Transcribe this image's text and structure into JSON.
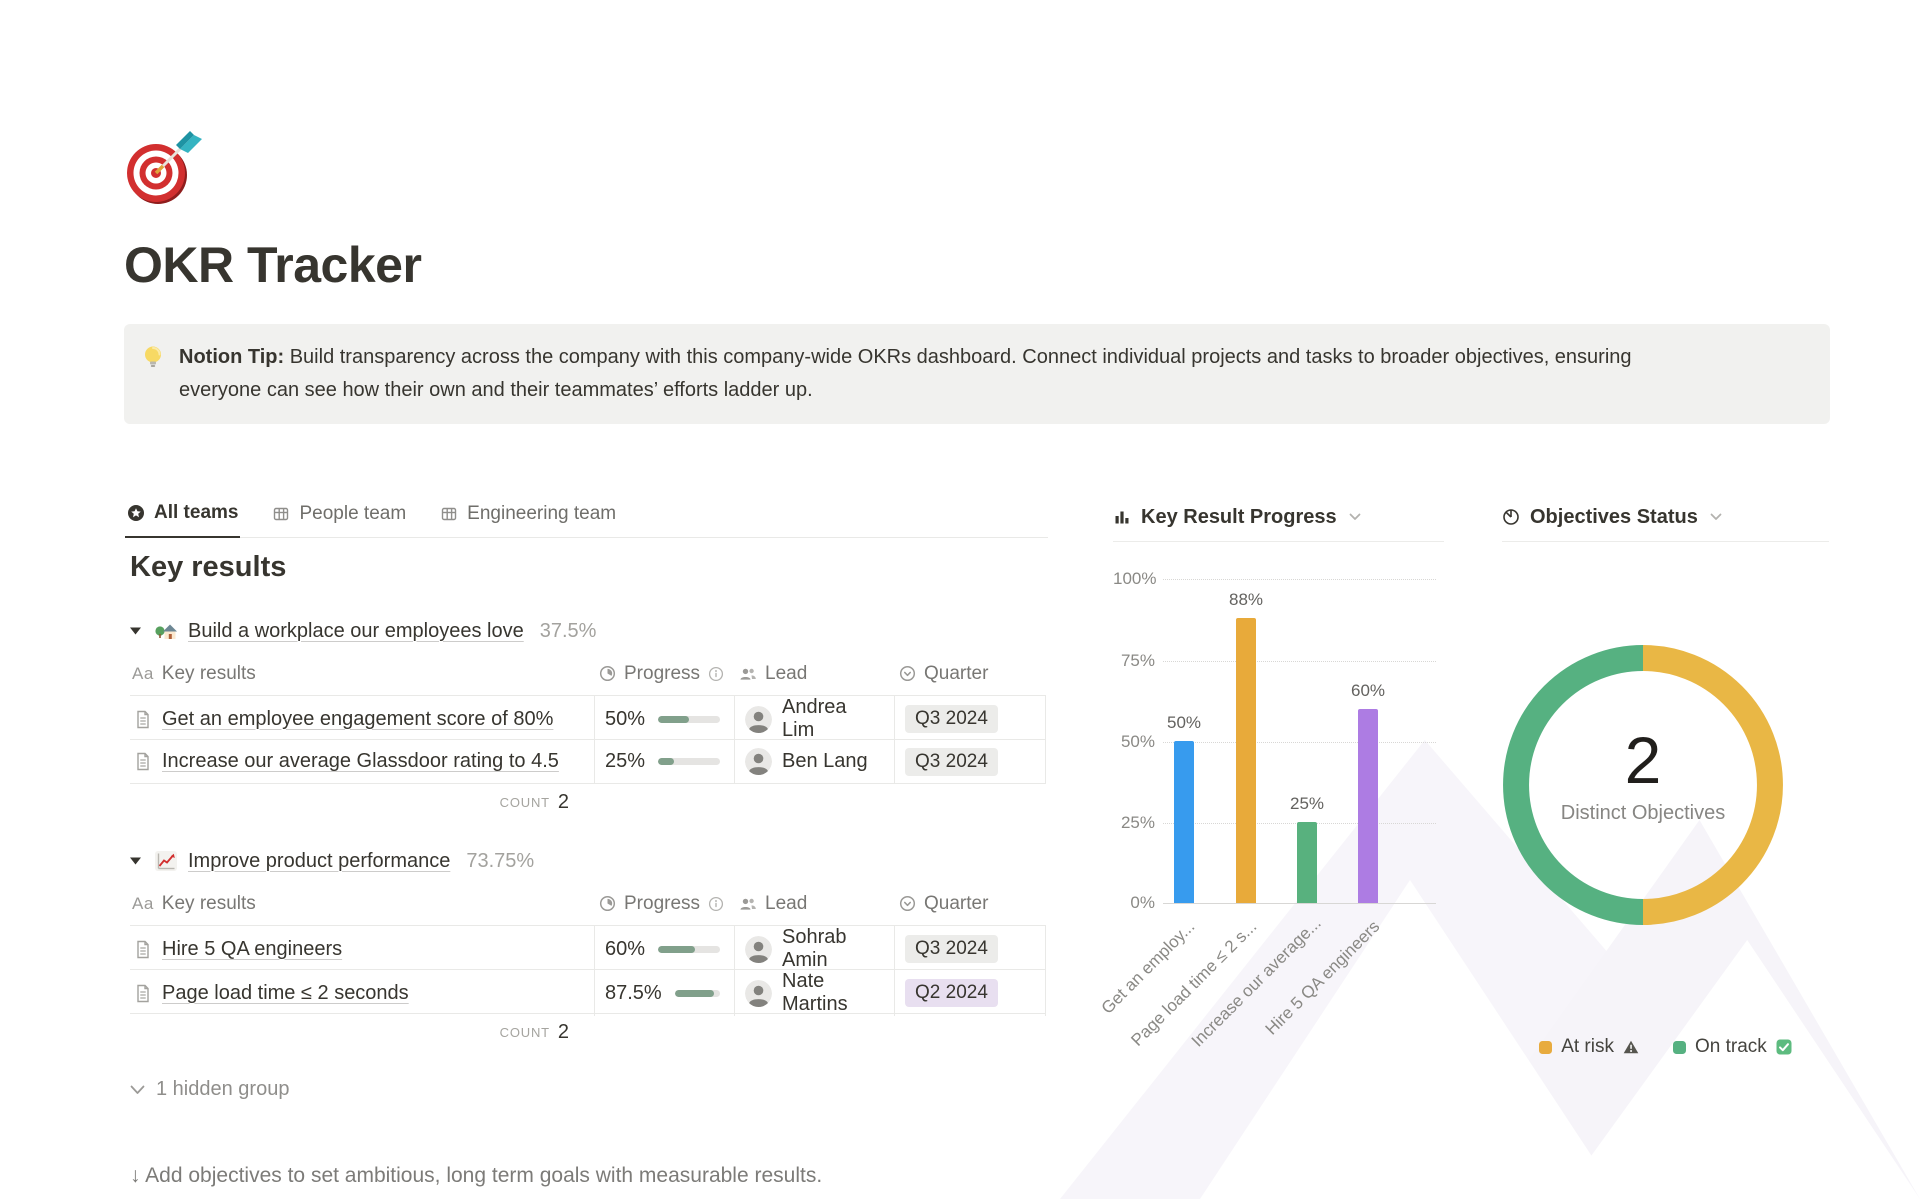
{
  "page": {
    "title": "OKR Tracker"
  },
  "callout": {
    "bold_prefix": "Notion Tip:",
    "line1": "Build transparency across the company with this company-wide OKRs dashboard. Connect individual projects and tasks to broader objectives, ensuring",
    "line2": "everyone can see how their own and their teammates’ efforts ladder up."
  },
  "tabs": [
    {
      "label": "All teams"
    },
    {
      "label": "People team"
    },
    {
      "label": "Engineering team"
    }
  ],
  "key_results": {
    "heading": "Key results",
    "columns": {
      "name_icon": "Aa",
      "name": "Key results",
      "progress": "Progress",
      "lead": "Lead",
      "quarter": "Quarter"
    },
    "count_label": "count",
    "groups": [
      {
        "title": "Build a workplace our employees love",
        "percent": "37.5%",
        "count": "2",
        "rows": [
          {
            "name": "Get an employee engagement score of 80%",
            "progress_label": "50%",
            "progress": 50,
            "lead": "Andrea Lim",
            "quarter": "Q3 2024"
          },
          {
            "name": "Increase our average Glassdoor rating to 4.5",
            "progress_label": "25%",
            "progress": 25,
            "lead": "Ben Lang",
            "quarter": "Q3 2024"
          }
        ]
      },
      {
        "title": "Improve product performance",
        "percent": "73.75%",
        "count": "2",
        "rows": [
          {
            "name": "Hire 5 QA engineers",
            "progress_label": "60%",
            "progress": 60,
            "lead": "Sohrab Amin",
            "quarter": "Q3 2024"
          },
          {
            "name": "Page load time ≤ 2 seconds",
            "progress_label": "87.5%",
            "progress": 87.5,
            "lead": "Nate Martins",
            "quarter": "Q2 2024"
          }
        ]
      }
    ],
    "hidden_group": "1 hidden group"
  },
  "footer": {
    "hint": "↓ Add objectives to set ambitious, long term goals with measurable results."
  },
  "chart_data": [
    {
      "type": "bar",
      "title": "Key Result Progress",
      "categories": [
        "Get an employee engagement score of 80%",
        "Page load time ≤ 2 seconds",
        "Increase our average Glassdoor rating to 4.5",
        "Hire 5 QA engineers"
      ],
      "tick_labels": [
        "Get an employ...",
        "Page load time ≤ 2 s...",
        "Increase our average...",
        "Hire 5 QA engineers"
      ],
      "values": [
        50,
        88,
        25,
        60
      ],
      "value_labels": [
        "50%",
        "88%",
        "25%",
        "60%"
      ],
      "colors": [
        "#379bee",
        "#e8aa3a",
        "#58b17e",
        "#ad7ce3"
      ],
      "ylabel": "",
      "xlabel": "",
      "ylim": [
        0,
        100
      ],
      "yticks": [
        "0%",
        "25%",
        "50%",
        "75%",
        "100%"
      ],
      "grid": "dotted-horizontal",
      "legend_position": "none"
    },
    {
      "type": "pie",
      "title": "Objectives Status",
      "subtype": "donut",
      "slices": [
        {
          "label": "At risk",
          "value": 1,
          "color": "#e9b745",
          "legend_color": "#e8ab3e"
        },
        {
          "label": "On track",
          "value": 1,
          "color": "#56b181",
          "legend_color": "#56b181"
        }
      ],
      "center_value": "2",
      "center_label": "Distinct Objectives",
      "legend_position": "bottom"
    }
  ]
}
